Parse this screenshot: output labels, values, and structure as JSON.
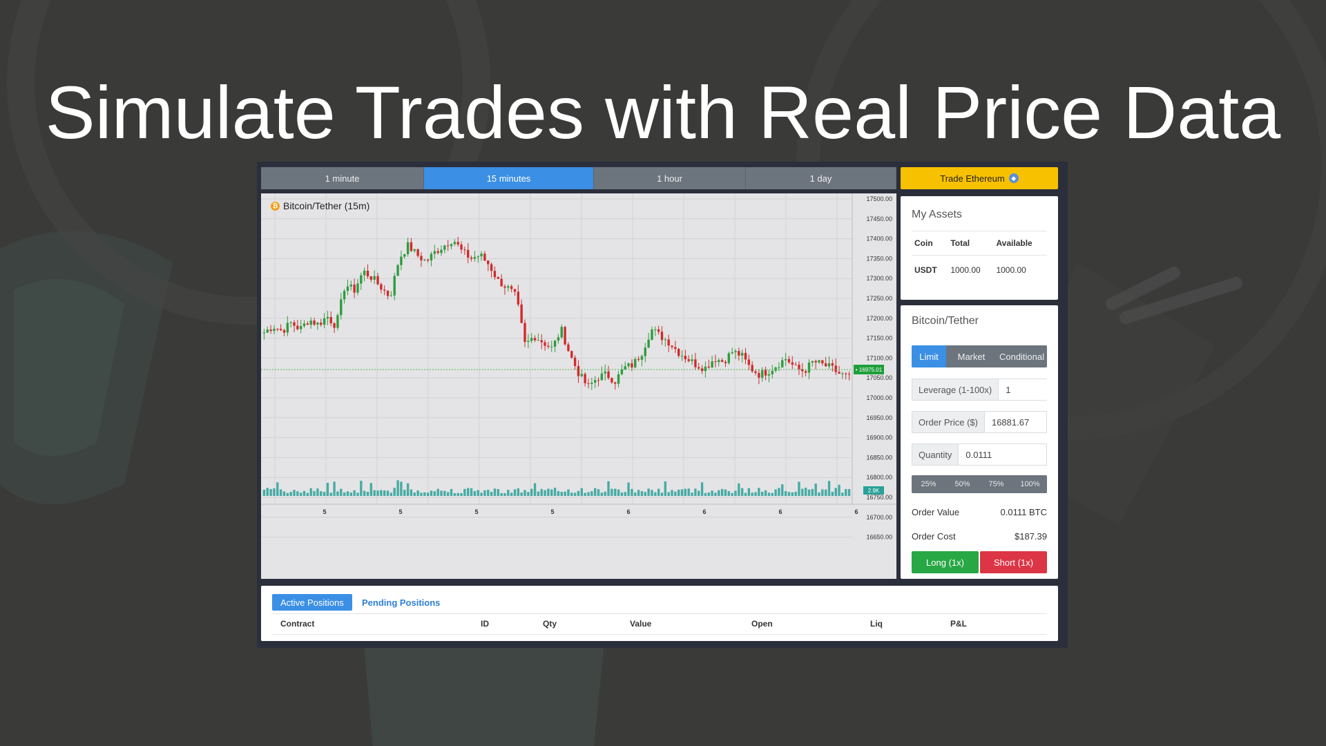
{
  "headline": "Simulate Trades with Real Price Data",
  "timeframes": [
    {
      "label": "1 minute",
      "active": false
    },
    {
      "label": "15 minutes",
      "active": true
    },
    {
      "label": "1 hour",
      "active": false
    },
    {
      "label": "1 day",
      "active": false
    }
  ],
  "trade_other": {
    "label": "Trade Ethereum",
    "icon": "ethereum-icon"
  },
  "chart": {
    "title": "Bitcoin/Tether (15m)",
    "icon": "bitcoin-icon",
    "current_price_label": "16975.01",
    "volume_label": "2.9K",
    "x_tick_labels": [
      "5",
      "5",
      "5",
      "5",
      "6",
      "6",
      "6",
      "6"
    ]
  },
  "chart_data": {
    "type": "candlestick",
    "title": "Bitcoin/Tether (15m)",
    "y_ticks": [
      "17500.00",
      "17450.00",
      "17400.00",
      "17350.00",
      "17300.00",
      "17250.00",
      "17200.00",
      "17150.00",
      "17100.00",
      "17050.00",
      "17000.00",
      "16950.00",
      "16900.00",
      "16850.00",
      "16800.00",
      "16750.00",
      "16700.00",
      "16650.00"
    ],
    "ylim": [
      16600,
      17500
    ],
    "current_price": 16975.01,
    "close_path": [
      17090,
      17110,
      17095,
      17120,
      17100,
      17130,
      17115,
      17140,
      17110,
      17240,
      17220,
      17280,
      17260,
      17230,
      17200,
      17320,
      17360,
      17330,
      17310,
      17340,
      17360,
      17380,
      17340,
      17320,
      17330,
      17300,
      17250,
      17230,
      17200,
      17050,
      17080,
      17060,
      17040,
      17100,
      17020,
      16960,
      16920,
      16950,
      16960,
      16940,
      16980,
      16990,
      17030,
      17100,
      17080,
      17060,
      17030,
      17010,
      16990,
      16980,
      17010,
      17000,
      17030,
      17020,
      16980,
      16960,
      16970,
      16990,
      17010,
      16980,
      16970,
      17000,
      16990,
      16980,
      16960,
      16950
    ],
    "green": "#2e9c3e",
    "red": "#d12a2a",
    "volume_color": "#2aa198"
  },
  "assets": {
    "title": "My Assets",
    "columns": [
      "Coin",
      "Total",
      "Available"
    ],
    "rows": [
      {
        "coin": "USDT",
        "total": "1000.00",
        "available": "1000.00"
      }
    ]
  },
  "order": {
    "title": "Bitcoin/Tether",
    "tabs": [
      {
        "label": "Limit",
        "active": true
      },
      {
        "label": "Market",
        "active": false
      },
      {
        "label": "Conditional",
        "active": false
      }
    ],
    "leverage": {
      "label": "Leverage (1-100x)",
      "value": "1"
    },
    "price": {
      "label": "Order Price ($)",
      "value": "16881.67"
    },
    "quantity": {
      "label": "Quantity",
      "value": "0.0111"
    },
    "percent_buttons": [
      "25%",
      "50%",
      "75%",
      "100%"
    ],
    "order_value": {
      "label": "Order Value",
      "value": "0.0111 BTC"
    },
    "order_cost": {
      "label": "Order Cost",
      "value": "$187.39"
    },
    "long_label": "Long (1x)",
    "short_label": "Short (1x)"
  },
  "positions": {
    "tabs": [
      {
        "label": "Active Positions",
        "active": true
      },
      {
        "label": "Pending Positions",
        "active": false
      }
    ],
    "columns": [
      "Contract",
      "ID",
      "Qty",
      "Value",
      "Open",
      "Liq",
      "P&L"
    ]
  }
}
